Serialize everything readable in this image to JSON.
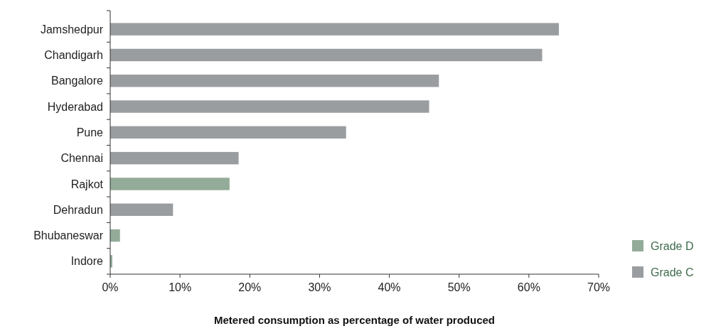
{
  "chart_data": {
    "type": "bar",
    "orientation": "horizontal",
    "xlabel": "Metered consumption as percentage of water produced",
    "categories": [
      "Jamshedpur",
      "Chandigarh",
      "Bangalore",
      "Hyderabad",
      "Pune",
      "Chennai",
      "Rajkot",
      "Dehradun",
      "Bhubaneswar",
      "Indore"
    ],
    "series": [
      {
        "name": "Grade D",
        "color": "#93ab98",
        "values": [
          null,
          null,
          null,
          null,
          null,
          null,
          17.1,
          null,
          1.4,
          0.3
        ]
      },
      {
        "name": "Grade C",
        "color": "#9a9da0",
        "values": [
          64.3,
          61.9,
          47.1,
          45.7,
          33.8,
          18.4,
          null,
          9.0,
          null,
          null
        ]
      }
    ],
    "xlim": [
      0,
      70
    ],
    "xticks": [
      {
        "value": 0,
        "label": "0%"
      },
      {
        "value": 10,
        "label": "10%"
      },
      {
        "value": 20,
        "label": "20%"
      },
      {
        "value": 30,
        "label": "30%"
      },
      {
        "value": 40,
        "label": "40%"
      },
      {
        "value": 50,
        "label": "50%"
      },
      {
        "value": 60,
        "label": "60%"
      },
      {
        "value": 70,
        "label": "70%"
      }
    ],
    "grid": false,
    "legend": "bottom right"
  }
}
